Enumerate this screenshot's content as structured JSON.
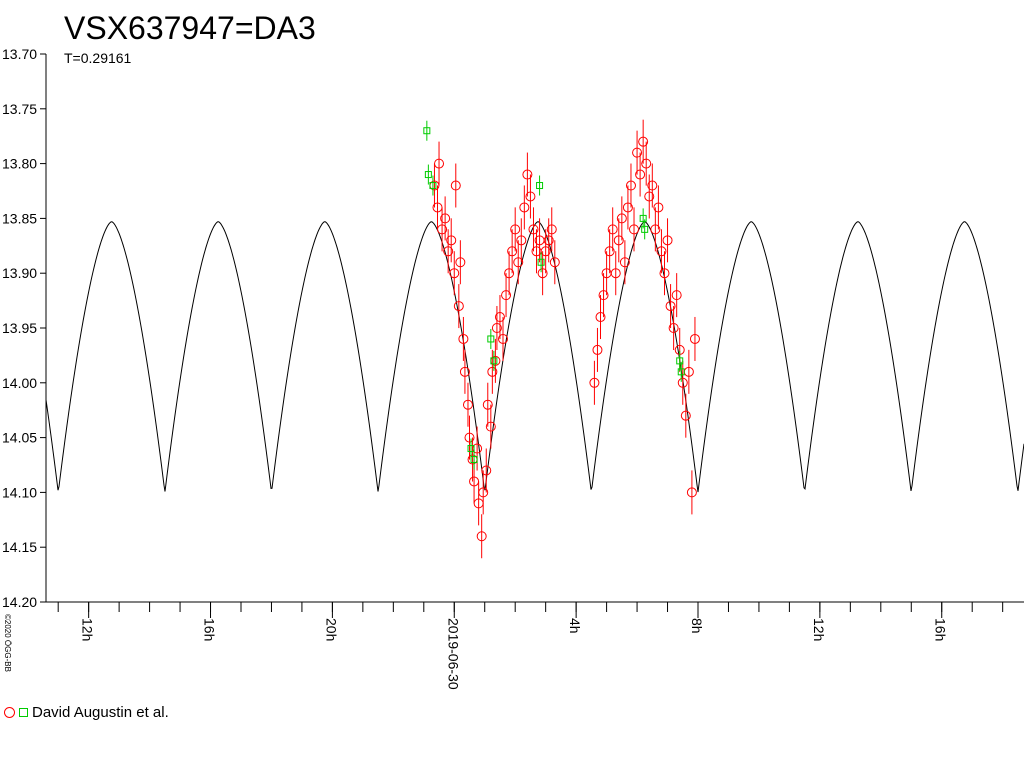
{
  "chart_data": {
    "type": "scatter",
    "title": "VSX637947=DA3",
    "period_label": "T=0.29161",
    "copyright": "©2020 ÖGG-BB",
    "y_reversed": true,
    "ylim": [
      13.7,
      14.2
    ],
    "y_ticks": [
      "13.70",
      "13.75",
      "13.80",
      "13.85",
      "13.90",
      "13.95",
      "14.00",
      "14.05",
      "14.10",
      "14.15",
      "14.20"
    ],
    "x_range_hours": [
      10.6,
      42.7
    ],
    "x_ticks": [
      {
        "label": "12h",
        "h": 12
      },
      {
        "label": "16h",
        "h": 16
      },
      {
        "label": "20h",
        "h": 20
      },
      {
        "label": "2019-06-30",
        "h": 24
      },
      {
        "label": "4h",
        "h": 28
      },
      {
        "label": "8h",
        "h": 32
      },
      {
        "label": "12h",
        "h": 36
      },
      {
        "label": "16h",
        "h": 40
      }
    ],
    "model": {
      "period_h": 3.49932,
      "max_mag": 13.853,
      "min_mag": 14.1,
      "min_epoch_h": 25.0
    },
    "series": [
      {
        "name": "David Augustin et al.",
        "marker": "circle",
        "color": "#ff0000",
        "x": [
          23.35,
          23.45,
          23.5,
          23.6,
          23.7,
          23.8,
          23.9,
          24.0,
          24.05,
          24.15,
          24.2,
          24.3,
          24.35,
          24.45,
          24.5,
          24.6,
          24.65,
          24.75,
          24.8,
          24.9,
          24.95,
          25.05,
          25.1,
          25.2,
          25.25,
          25.35,
          25.4,
          25.5,
          25.6,
          25.7,
          25.8,
          25.9,
          26.0,
          26.1,
          26.2,
          26.3,
          26.4,
          26.5,
          26.6,
          26.7,
          26.8,
          26.9,
          27.0,
          27.1,
          27.2,
          27.3,
          28.6,
          28.7,
          28.8,
          28.9,
          29.0,
          29.1,
          29.2,
          29.3,
          29.4,
          29.5,
          29.6,
          29.7,
          29.8,
          29.9,
          30.0,
          30.1,
          30.2,
          30.3,
          30.4,
          30.5,
          30.6,
          30.7,
          30.8,
          30.9,
          31.0,
          31.1,
          31.2,
          31.3,
          31.4,
          31.5,
          31.6,
          31.7,
          31.8,
          31.9
        ],
        "y": [
          13.82,
          13.84,
          13.8,
          13.86,
          13.85,
          13.88,
          13.87,
          13.9,
          13.82,
          13.93,
          13.89,
          13.96,
          13.99,
          14.02,
          14.05,
          14.07,
          14.09,
          14.06,
          14.11,
          14.14,
          14.1,
          14.08,
          14.02,
          14.04,
          13.99,
          13.98,
          13.95,
          13.94,
          13.96,
          13.92,
          13.9,
          13.88,
          13.86,
          13.89,
          13.87,
          13.84,
          13.81,
          13.83,
          13.86,
          13.88,
          13.87,
          13.9,
          13.88,
          13.87,
          13.86,
          13.89,
          14.0,
          13.97,
          13.94,
          13.92,
          13.9,
          13.88,
          13.86,
          13.9,
          13.87,
          13.85,
          13.89,
          13.84,
          13.82,
          13.86,
          13.79,
          13.81,
          13.78,
          13.8,
          13.83,
          13.82,
          13.86,
          13.84,
          13.88,
          13.9,
          13.87,
          13.93,
          13.95,
          13.92,
          13.97,
          14.0,
          14.03,
          13.99,
          14.1,
          13.96
        ]
      },
      {
        "name": "",
        "marker": "square",
        "color": "#00cc00",
        "x": [
          23.1,
          23.15,
          23.3,
          24.55,
          24.65,
          25.2,
          25.3,
          26.8,
          26.85,
          30.2,
          30.25,
          31.4,
          31.45
        ],
        "y": [
          13.77,
          13.81,
          13.82,
          14.06,
          14.07,
          13.96,
          13.98,
          13.82,
          13.89,
          13.85,
          13.86,
          13.98,
          13.99
        ]
      }
    ],
    "legend_label": "David Augustin et al."
  }
}
